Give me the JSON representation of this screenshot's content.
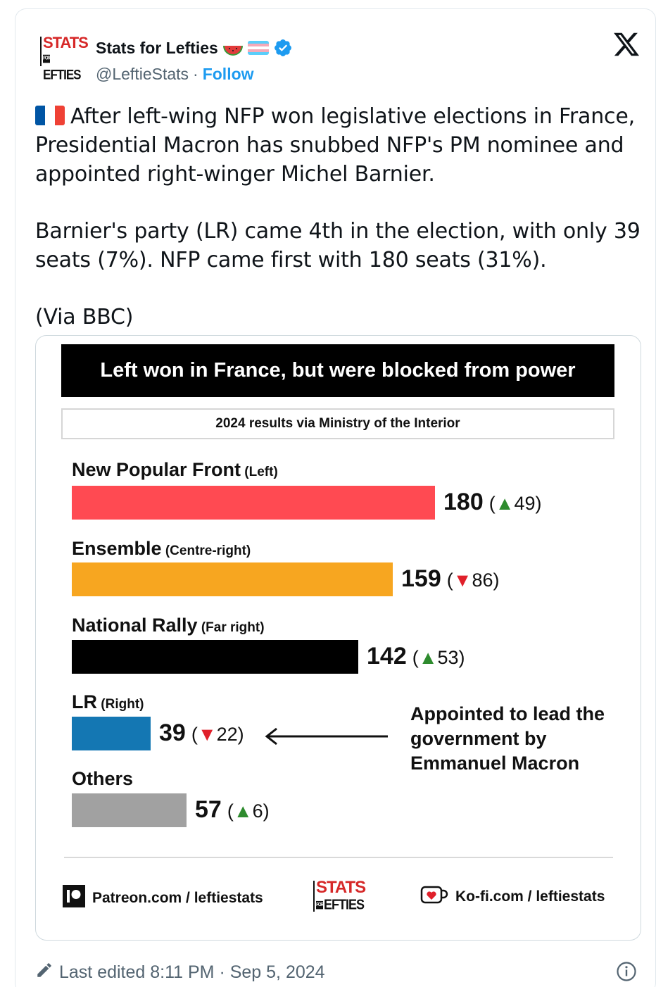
{
  "author": {
    "name": "Stats for Lefties",
    "handle": "@LeftieStats",
    "separator": "·",
    "follow_label": "Follow",
    "avatar_logo": {
      "top": "STATS",
      "bottom": "EFTIES",
      "small": "FOR"
    }
  },
  "tweet": {
    "paragraph1": "After left-wing NFP won legislative elections in France, Presidential Macron has snubbed NFP's PM nominee and appointed right-winger Michel Barnier.",
    "paragraph2": "Barnier's party (LR) came 4th in the election, with only 39 seats (7%). NFP came first with 180 seats (31%).",
    "paragraph3": "(Via BBC)"
  },
  "graphic": {
    "title": "Left won in France, but were blocked from power",
    "subtitle": "2024 results via Ministry of the Interior",
    "annotation": "Appointed to lead the government by Emmanuel Macron",
    "footer": {
      "patreon": "Patreon.com / leftiestats",
      "kofi": "Ko-fi.com / leftiestats",
      "logo_top": "STATS",
      "logo_bottom": "EFTIES",
      "logo_small": "FOR"
    }
  },
  "chart_data": {
    "type": "bar",
    "orientation": "horizontal",
    "categories": [
      "New Popular Front",
      "Ensemble",
      "National Rally",
      "LR",
      "Others"
    ],
    "qualifiers": [
      "(Left)",
      "(Centre-right)",
      "(Far right)",
      "(Right)",
      ""
    ],
    "values": [
      180,
      159,
      142,
      39,
      57
    ],
    "changes": [
      {
        "dir": "up",
        "amount": "49"
      },
      {
        "dir": "down",
        "amount": "86"
      },
      {
        "dir": "up",
        "amount": "53"
      },
      {
        "dir": "down",
        "amount": "22"
      },
      {
        "dir": "up",
        "amount": "6"
      }
    ],
    "colors": [
      "#ff4a52",
      "#f7a620",
      "#000000",
      "#1477b3",
      "#a1a1a1"
    ],
    "xlim": [
      0,
      180
    ]
  },
  "meta": {
    "edited": "Last edited 8:11 PM · Sep 5, 2024"
  },
  "colors": {
    "accent": "#1d9bf0",
    "muted": "#536471"
  },
  "icons": [
    "watermelon-icon",
    "trans-flag-icon",
    "verified-badge-icon",
    "x-logo-icon",
    "french-flag-icon",
    "patreon-icon",
    "kofi-icon",
    "pencil-icon",
    "info-icon"
  ]
}
